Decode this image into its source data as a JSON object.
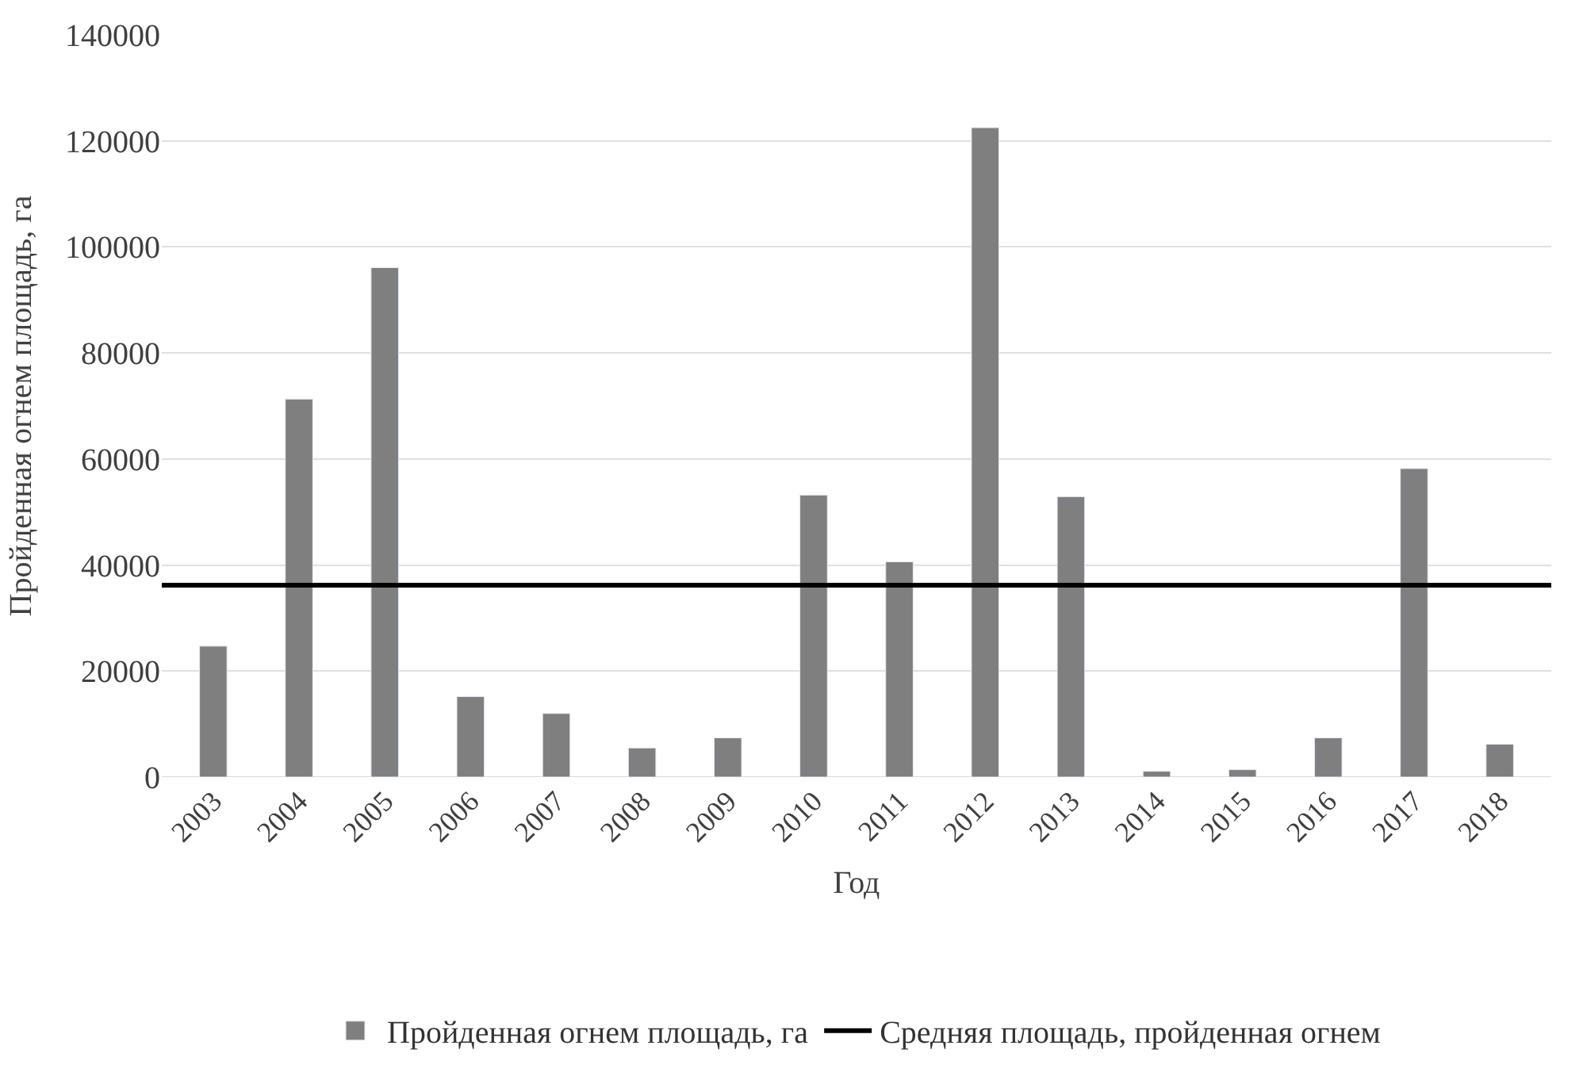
{
  "chart_data": {
    "type": "bar",
    "xlabel": "Год",
    "ylabel": "Пройденная огнем площадь, га",
    "categories": [
      "2003",
      "2004",
      "2005",
      "2006",
      "2007",
      "2008",
      "2009",
      "2010",
      "2011",
      "2012",
      "2013",
      "2014",
      "2015",
      "2016",
      "2017",
      "2018"
    ],
    "series": [
      {
        "name": "Пройденная огнем площадь, га",
        "color": "#7f7f7f",
        "values": [
          24700,
          71300,
          96100,
          15200,
          12000,
          5500,
          7400,
          53200,
          40600,
          122500,
          52900,
          1100,
          1400,
          7400,
          58200,
          6200
        ]
      }
    ],
    "ref_lines": [
      {
        "axis": "y",
        "value": 36200,
        "label": "Средняя площадь, пройденная огнем",
        "color": "#000000",
        "line_style": "solid"
      }
    ],
    "ylim": [
      0,
      140000
    ],
    "yticks": [
      0,
      20000,
      40000,
      60000,
      80000,
      100000,
      120000,
      140000
    ],
    "grid": "y",
    "legend": "bottom"
  }
}
